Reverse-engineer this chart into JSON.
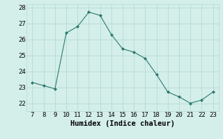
{
  "x": [
    7,
    8,
    9,
    10,
    11,
    12,
    13,
    14,
    15,
    16,
    17,
    18,
    19,
    20,
    21,
    22,
    23
  ],
  "y": [
    23.3,
    23.1,
    22.9,
    26.4,
    26.8,
    27.7,
    27.5,
    26.3,
    25.4,
    25.2,
    24.8,
    23.8,
    22.7,
    22.4,
    22.0,
    22.2,
    22.7
  ],
  "line_color": "#2a7a70",
  "marker_color": "#2a7a70",
  "bg_color": "#d4eeea",
  "grid_color": "#b0d8d0",
  "xlabel": "Humidex (Indice chaleur)",
  "xlabel_fontsize": 7.5,
  "tick_fontsize": 6.5,
  "ylim": [
    21.5,
    28.2
  ],
  "xlim": [
    6.5,
    23.5
  ],
  "yticks": [
    22,
    23,
    24,
    25,
    26,
    27,
    28
  ],
  "xticks": [
    7,
    8,
    9,
    10,
    11,
    12,
    13,
    14,
    15,
    16,
    17,
    18,
    19,
    20,
    21,
    22,
    23
  ]
}
